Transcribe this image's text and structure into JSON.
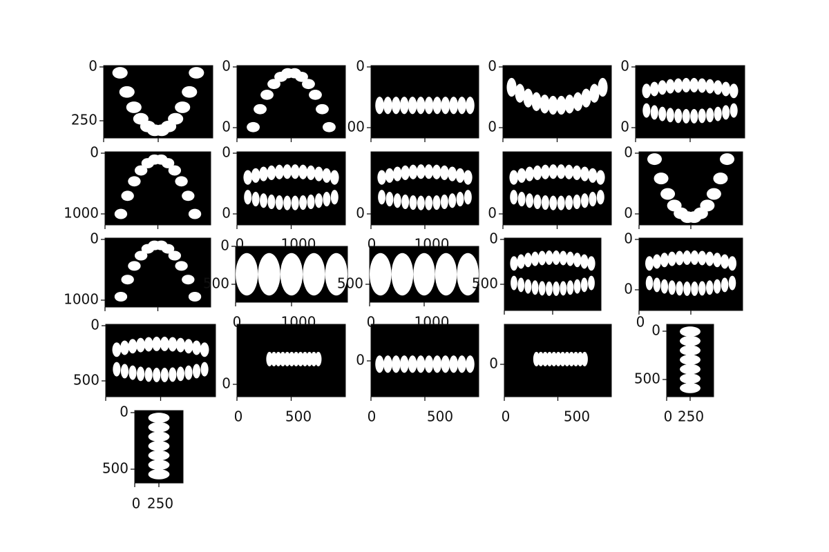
{
  "panels": [
    {
      "yticks": [
        "0",
        "250"
      ],
      "xticks": []
    },
    {
      "yticks": [
        "0",
        "0"
      ],
      "xticks": []
    },
    {
      "yticks": [
        "0",
        "00"
      ],
      "xticks": []
    },
    {
      "yticks": [
        "0",
        "0"
      ],
      "xticks": []
    },
    {
      "yticks": [
        "0",
        "0"
      ],
      "xticks": []
    },
    {
      "yticks": [
        "0",
        "1000"
      ],
      "xticks": []
    },
    {
      "yticks": [
        "0",
        "0"
      ],
      "xticks": [
        "0",
        "1000"
      ]
    },
    {
      "yticks": [
        "0"
      ],
      "xticks": [
        "0",
        "1000"
      ]
    },
    {
      "yticks": [
        "0"
      ],
      "xticks": []
    },
    {
      "yticks": [
        "0",
        "0"
      ],
      "xticks": []
    },
    {
      "yticks": [
        "0",
        "1000"
      ],
      "xticks": []
    },
    {
      "yticks": [
        "0",
        "500"
      ],
      "xticks": [
        "0",
        "1000"
      ]
    },
    {
      "yticks": [
        "500"
      ],
      "xticks": [
        "0",
        "1000"
      ]
    },
    {
      "yticks": [
        "0",
        "500"
      ],
      "xticks": []
    },
    {
      "yticks": [
        "0",
        "0"
      ],
      "xticks": [
        "0"
      ]
    },
    {
      "yticks": [
        "0",
        "500"
      ],
      "xticks": []
    },
    {
      "yticks": [
        "0"
      ],
      "xticks": [
        "0",
        "500"
      ]
    },
    {
      "yticks": [
        "0"
      ],
      "xticks": [
        "0",
        "500"
      ]
    },
    {
      "yticks": [
        "0"
      ],
      "xticks": [
        "0",
        "500"
      ]
    },
    {
      "yticks": [
        "0",
        "500"
      ],
      "xticks": [
        "0",
        "250"
      ]
    },
    {
      "yticks": [
        "0",
        "500"
      ],
      "xticks": [
        "0",
        "250"
      ]
    }
  ]
}
